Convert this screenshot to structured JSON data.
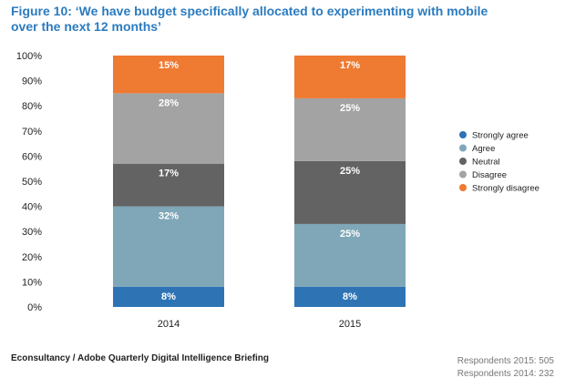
{
  "title": {
    "line1": "Figure 10: ‘We have budget specifically allocated to experimenting with mobile",
    "line2": "over the next 12 months’"
  },
  "colors": {
    "strongly_agree": "#2e74b5",
    "agree": "#7fa7b8",
    "neutral": "#636363",
    "disagree": "#a3a3a3",
    "strongly_disagree": "#ef7a31"
  },
  "chart_data": {
    "type": "bar",
    "stacked": true,
    "categories": [
      "2014",
      "2015"
    ],
    "ylim": [
      0,
      100
    ],
    "yticks": [
      "0%",
      "10%",
      "20%",
      "30%",
      "40%",
      "50%",
      "60%",
      "70%",
      "80%",
      "90%",
      "100%"
    ],
    "series": [
      {
        "name": "Strongly agree",
        "key": "strongly_agree",
        "values": [
          8,
          8
        ],
        "labels": [
          "8%",
          "8%"
        ]
      },
      {
        "name": "Agree",
        "key": "agree",
        "values": [
          32,
          25
        ],
        "labels": [
          "32%",
          "25%"
        ]
      },
      {
        "name": "Neutral",
        "key": "neutral",
        "values": [
          17,
          25
        ],
        "labels": [
          "17%",
          "25%"
        ]
      },
      {
        "name": "Disagree",
        "key": "disagree",
        "values": [
          28,
          25
        ],
        "labels": [
          "28%",
          "25%"
        ]
      },
      {
        "name": "Strongly disagree",
        "key": "strongly_disagree",
        "values": [
          15,
          17
        ],
        "labels": [
          "15%",
          "17%"
        ]
      }
    ],
    "legend_position": "right"
  },
  "footer": {
    "source": "Econsultancy / Adobe Quarterly Digital Intelligence Briefing",
    "respondents_2015": "Respondents 2015: 505",
    "respondents_2014": "Respondents 2014: 232"
  }
}
